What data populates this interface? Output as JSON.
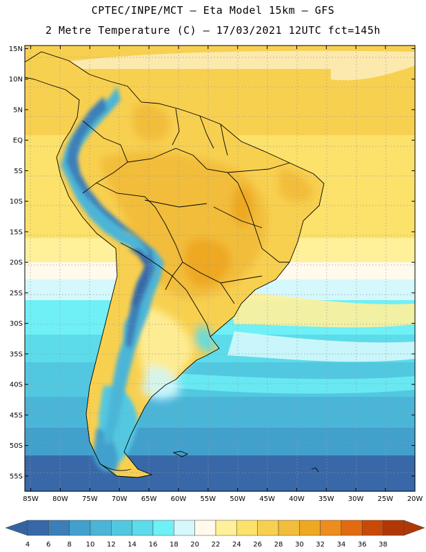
{
  "header": {
    "title_line1": "CPTEC/INPE/MCT –  Eta Model 15km – GFS",
    "title_line2": "2 Metre Temperature (C) – 17/03/2021 12UTC fct=145h"
  },
  "map": {
    "lat_labels": [
      "15N",
      "10N",
      "5N",
      "EQ",
      "5S",
      "10S",
      "15S",
      "20S",
      "25S",
      "30S",
      "35S",
      "40S",
      "45S",
      "50S",
      "55S"
    ],
    "lon_labels": [
      "85W",
      "80W",
      "75W",
      "70W",
      "65W",
      "60W",
      "55W",
      "50W",
      "45W",
      "40W",
      "35W",
      "30W",
      "25W",
      "20W"
    ],
    "lat_range": [
      15.5,
      -57.5
    ],
    "lon_range": [
      -86,
      -20
    ]
  },
  "colorbar": {
    "labels": [
      "4",
      "6",
      "8",
      "10",
      "12",
      "14",
      "16",
      "18",
      "20",
      "22",
      "24",
      "26",
      "28",
      "30",
      "32",
      "34",
      "36",
      "38"
    ],
    "colors": [
      "#3868a8",
      "#3c7fb8",
      "#42a0cc",
      "#4bb5d8",
      "#52c8e0",
      "#5cdcea",
      "#6ef0f6",
      "#d4f8fc",
      "#fffaeb",
      "#fff09a",
      "#fce26a",
      "#f8d050",
      "#f2bd3a",
      "#eea822",
      "#ee8c1e",
      "#e26a10",
      "#c84a06",
      "#b03806"
    ],
    "low_color": "#3464a0",
    "high_color": "#b03806"
  }
}
